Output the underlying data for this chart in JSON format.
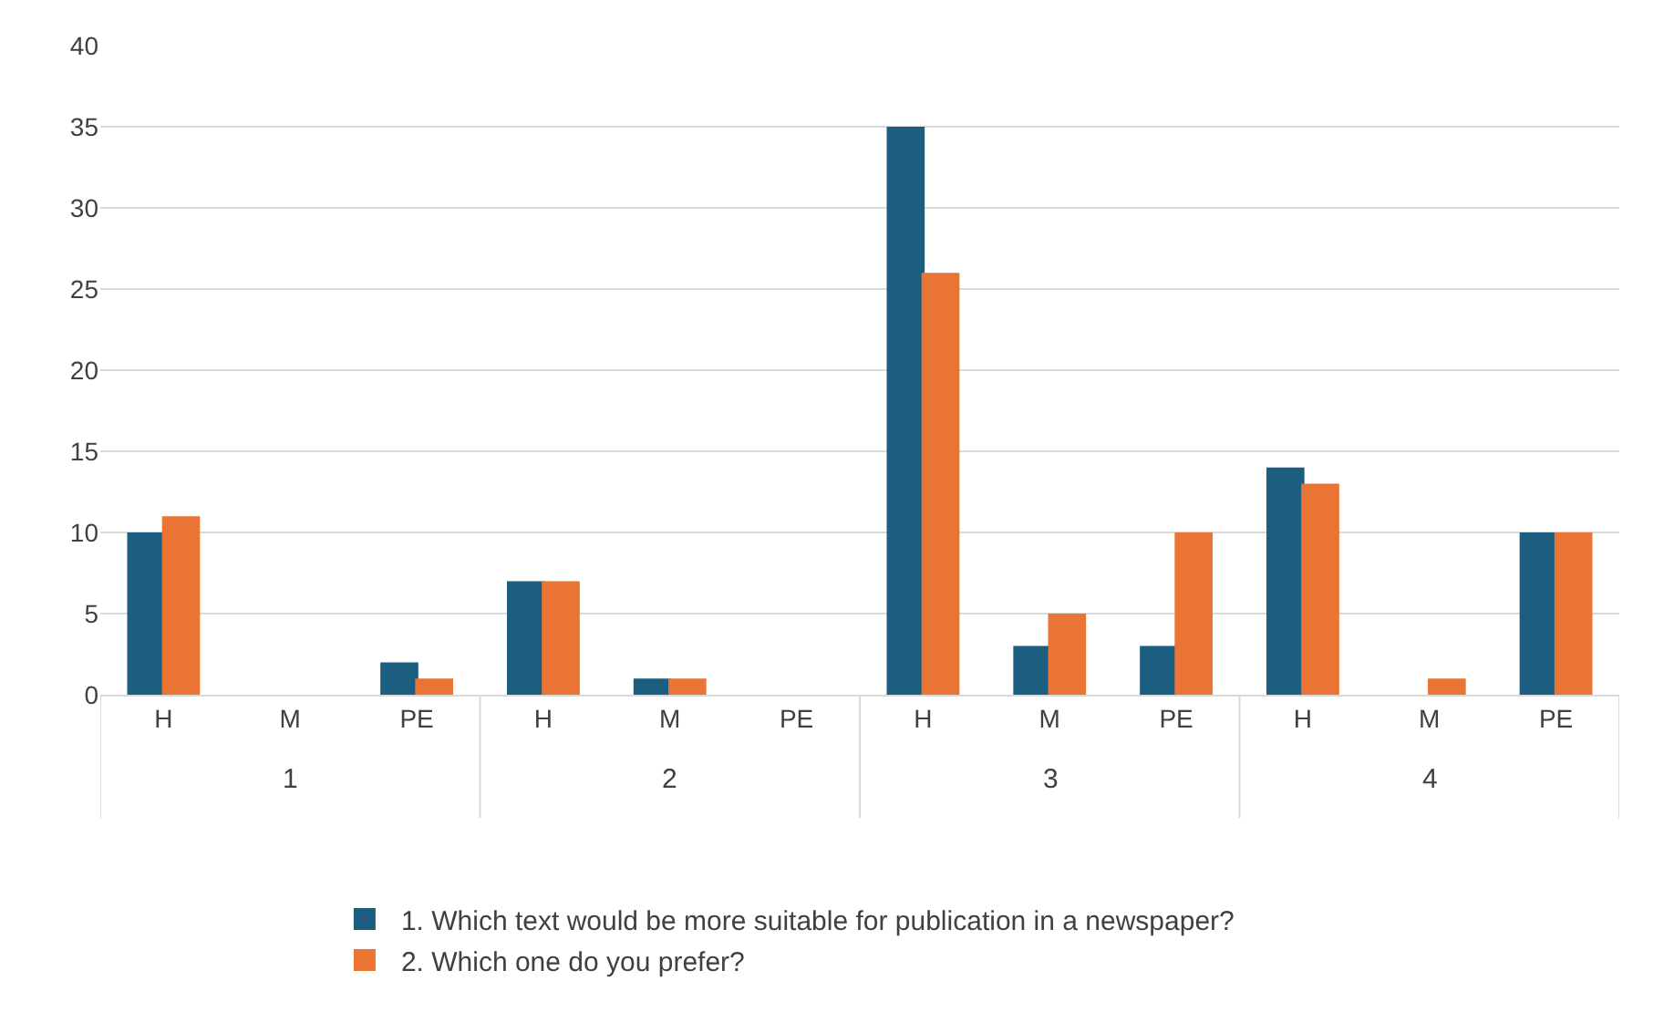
{
  "chart_data": {
    "type": "bar",
    "categories": [
      "H",
      "M",
      "PE",
      "H",
      "M",
      "PE",
      "H",
      "M",
      "PE",
      "H",
      "M",
      "PE"
    ],
    "annotations": [
      "1",
      "2",
      "3",
      "4"
    ],
    "series": [
      {
        "name": "1. Which text would be more suitable for publication in a newspaper?",
        "color": "#1b5e80",
        "values": [
          10,
          0,
          2,
          7,
          1,
          0,
          35,
          3,
          3,
          14,
          0,
          10
        ]
      },
      {
        "name": "2. Which one do you prefer?",
        "color": "#ea7434",
        "values": [
          11,
          0,
          1,
          7,
          1,
          0,
          26,
          5,
          10,
          13,
          1,
          10
        ]
      }
    ],
    "ylim": [
      0,
      40
    ],
    "yticks": [
      0,
      5,
      10,
      15,
      20,
      25,
      30,
      35,
      40
    ],
    "grid": "y",
    "legend": "bottom"
  }
}
